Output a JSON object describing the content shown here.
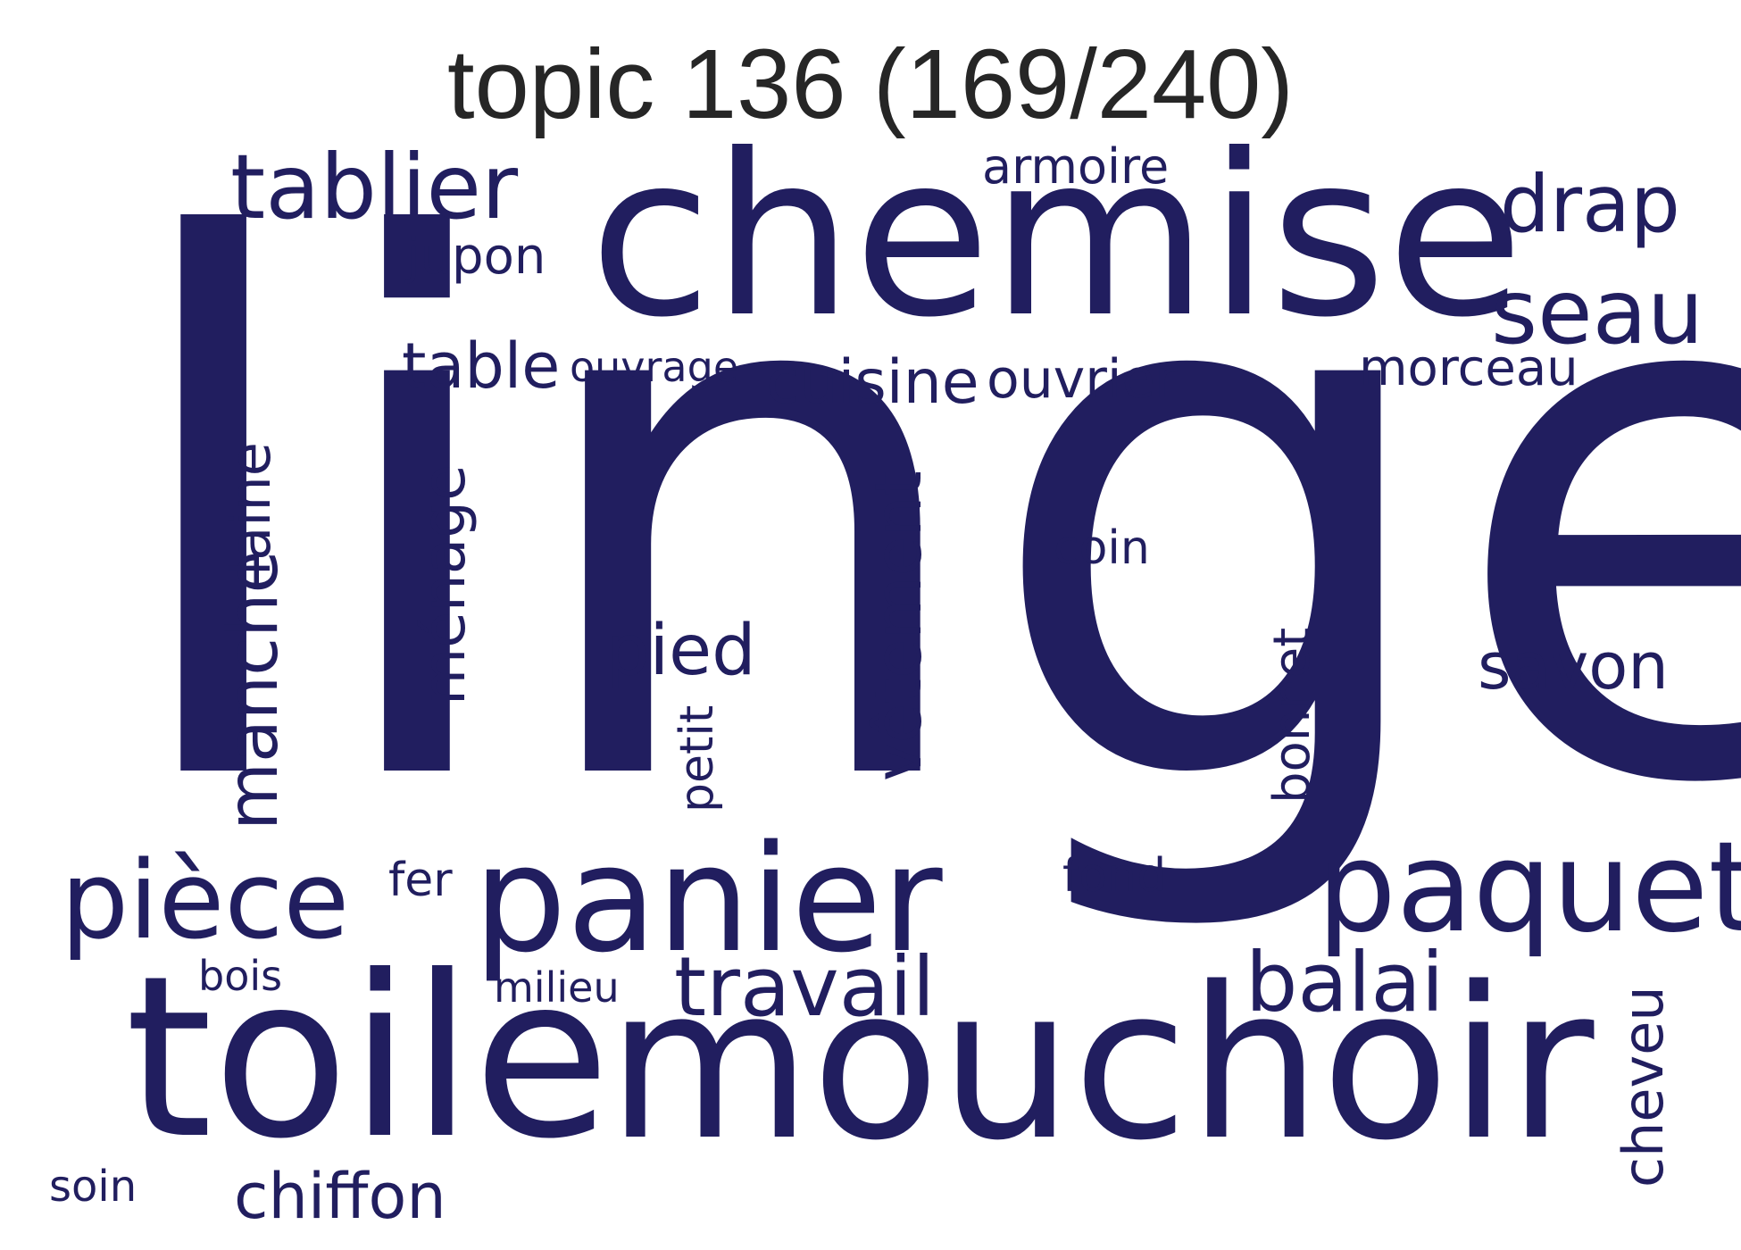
{
  "title": "topic 136 (169/240)",
  "word_color": "#211e5f",
  "words": {
    "linge": "linge",
    "chemise": "chemise",
    "mouchoir": "mouchoir",
    "toile": "toile",
    "panier": "panier",
    "paquet": "paquet",
    "tablier": "tablier",
    "drap": "drap",
    "seau": "seau",
    "piece": "pièce",
    "travail": "travail",
    "balai": "balai",
    "manche": "manche",
    "laine": "laine",
    "menage": "ménage",
    "vetement": "vêtement",
    "pied": "pied",
    "savon": "savon",
    "cuisine": "cuisine",
    "ouvrier": "ouvrier",
    "table": "table",
    "jupon": "jupon",
    "armoire": "armoire",
    "morceau": "morceau",
    "chiffon": "chiffon",
    "cheveu": "cheveu",
    "bonnet": "bonnet",
    "coin": "coin",
    "fond": "fond",
    "ouvrage": "ouvrage",
    "petit": "petit",
    "fer": "fer",
    "milieu": "milieu",
    "bois": "bois",
    "soin": "soin"
  }
}
